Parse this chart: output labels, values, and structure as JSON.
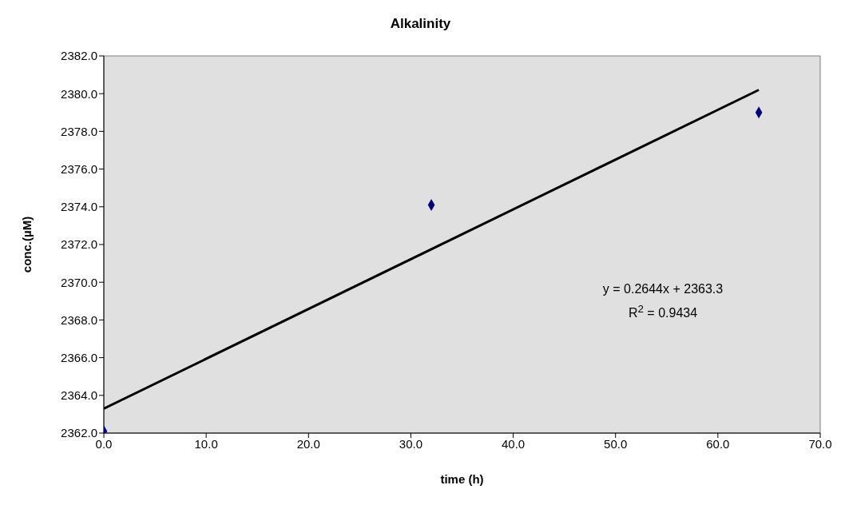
{
  "chart_data": {
    "type": "scatter",
    "title": "Alkalinity",
    "xlabel": "time (h)",
    "ylabel": "conc.(µM)",
    "xlim": [
      0,
      70
    ],
    "xticks": [
      {
        "value": 0,
        "label": "0.0"
      },
      {
        "value": 10,
        "label": "10.0"
      },
      {
        "value": 20,
        "label": "20.0"
      },
      {
        "value": 30,
        "label": "30.0"
      },
      {
        "value": 40,
        "label": "40.0"
      },
      {
        "value": 50,
        "label": "50.0"
      },
      {
        "value": 60,
        "label": "60.0"
      },
      {
        "value": 70,
        "label": "70.0"
      }
    ],
    "ylim": [
      2362,
      2382
    ],
    "yticks": [
      {
        "value": 2362,
        "label": "2362.0"
      },
      {
        "value": 2364,
        "label": "2364.0"
      },
      {
        "value": 2366,
        "label": "2366.0"
      },
      {
        "value": 2368,
        "label": "2368.0"
      },
      {
        "value": 2370,
        "label": "2370.0"
      },
      {
        "value": 2372,
        "label": "2372.0"
      },
      {
        "value": 2374,
        "label": "2374.0"
      },
      {
        "value": 2376,
        "label": "2376.0"
      },
      {
        "value": 2378,
        "label": "2378.0"
      },
      {
        "value": 2380,
        "label": "2380.0"
      },
      {
        "value": 2382,
        "label": "2382.0"
      }
    ],
    "grid": false,
    "legend": false,
    "series": [
      {
        "color": "#000080",
        "marker": "diamond",
        "x": [
          0,
          32,
          64
        ],
        "values": [
          2362.1,
          2374.1,
          2379.0
        ]
      },
      {
        "type": "line",
        "color": "#000000",
        "marker": "none",
        "x": [
          0,
          64
        ],
        "values": [
          2363.3,
          2380.2
        ]
      }
    ],
    "annotations": [
      "y = 0.2644x + 2363.3",
      "R$^{2}$ = 0.9434"
    ]
  }
}
